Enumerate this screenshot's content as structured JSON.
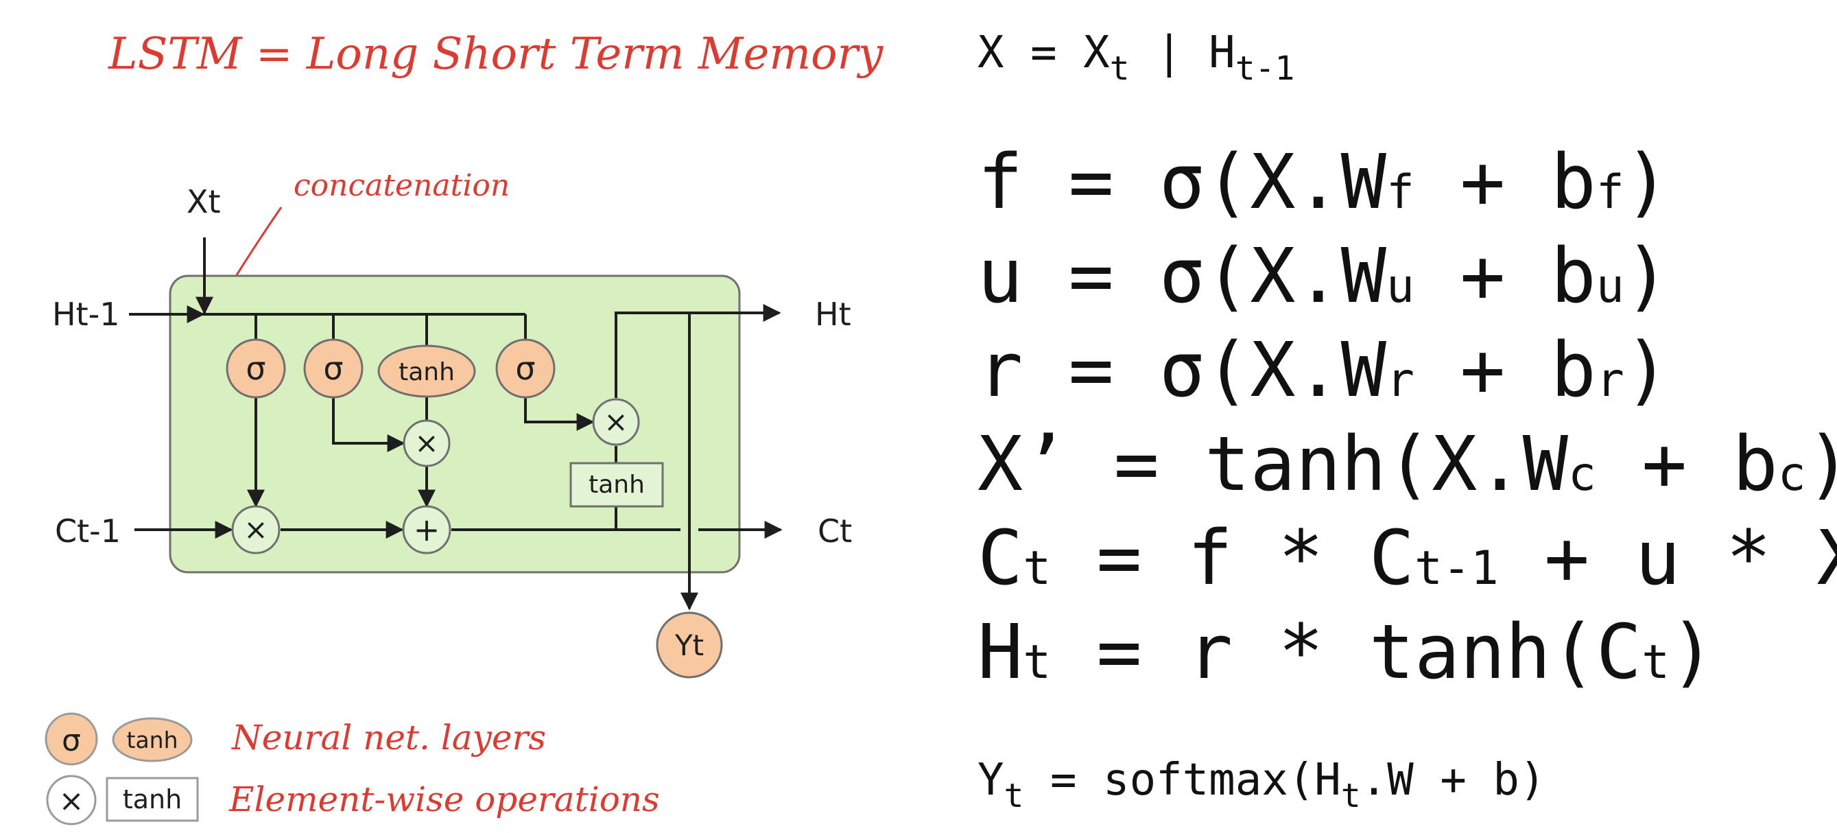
{
  "title": "LSTM = Long Short Term Memory",
  "annotation": "concatenation",
  "diagram": {
    "inputs": {
      "x": "Xt",
      "h_prev": "Ht-1",
      "c_prev": "Ct-1"
    },
    "outputs": {
      "h": "Ht",
      "c": "Ct",
      "y": "Yt"
    },
    "layers": [
      "σ",
      "σ",
      "tanh",
      "σ"
    ],
    "ops": {
      "multiply": "×",
      "add": "+",
      "tanh_op": "tanh"
    }
  },
  "legend": {
    "layer_sigma": "σ",
    "layer_tanh": "tanh",
    "layers_text": "Neural net. layers",
    "op_times": "×",
    "op_tanh": "tanh",
    "ops_text": "Element-wise operations"
  },
  "formulas": {
    "concat": {
      "lhs": "X = X",
      "sub1": "t",
      "mid": " | H",
      "sub2": "t-1"
    },
    "lines": [
      {
        "text": "f = σ(X.W",
        "s1": "f",
        "t2": " + b",
        "s2": "f",
        "t3": ")"
      },
      {
        "text": "u = σ(X.W",
        "s1": "u",
        "t2": " + b",
        "s2": "u",
        "t3": ")"
      },
      {
        "text": "r = σ(X.W",
        "s1": "r",
        "t2": " + b",
        "s2": "r",
        "t3": ")"
      },
      {
        "text": "X’ = tanh(X.W",
        "s1": "c",
        "t2": " + b",
        "s2": "c",
        "t3": ")"
      },
      {
        "text": "C",
        "s1": "t",
        "t2": " = f * C",
        "s2": "t-1",
        "t3": " + u * X’"
      },
      {
        "text": "H",
        "s1": "t",
        "t2": " = r * tanh(C",
        "s2": "t",
        "t3": ")"
      }
    ],
    "output": {
      "a": "Y",
      "s1": "t",
      "b": " = softmax(H",
      "s2": "t",
      "c": ".W + b)"
    }
  }
}
